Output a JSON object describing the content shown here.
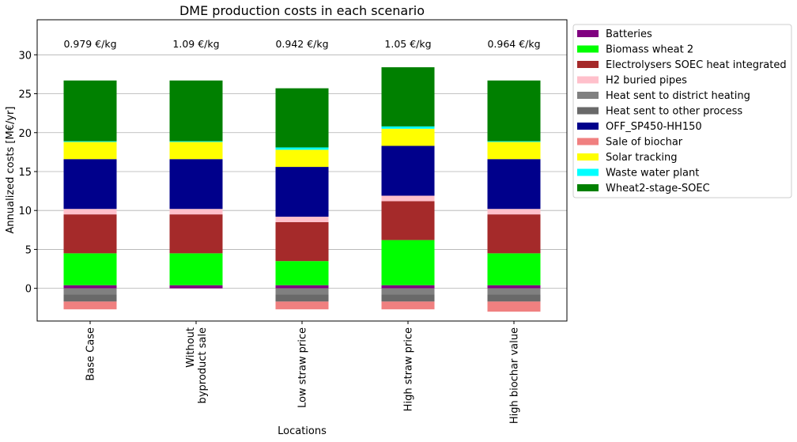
{
  "chart_data": {
    "type": "bar",
    "stacked": true,
    "title": "DME production costs in each scenario",
    "xlabel": "Locations",
    "ylabel": "Annualized costs [M€/yr]",
    "ylim": [
      -4.2,
      34.5
    ],
    "yticks": [
      0,
      5,
      10,
      15,
      20,
      25,
      30
    ],
    "grid": "horizontal",
    "legend_position": "outside-right",
    "categories": [
      "Base Case",
      "Without\nbyproduct sale",
      "Low straw price",
      "High straw price",
      "High biochar value"
    ],
    "annotations": [
      "0.979 €/kg",
      "1.09 €/kg",
      "0.942 €/kg",
      "1.05 €/kg",
      "0.964 €/kg"
    ],
    "series": [
      {
        "name": "Batteries",
        "color": "#800080",
        "values": [
          0.4,
          0.4,
          0.4,
          0.4,
          0.4
        ]
      },
      {
        "name": "Biomass wheat 2",
        "color": "#00ff00",
        "values": [
          4.1,
          4.1,
          3.1,
          5.8,
          4.1
        ]
      },
      {
        "name": "Electrolysers SOEC heat integrated",
        "color": "#a52a2a",
        "values": [
          5.0,
          5.0,
          5.0,
          5.0,
          5.0
        ]
      },
      {
        "name": "H2 buried pipes",
        "color": "#ffc0cb",
        "values": [
          0.7,
          0.7,
          0.7,
          0.7,
          0.7
        ]
      },
      {
        "name": "Heat sent to district heating",
        "color": "#808080",
        "values": [
          -0.8,
          0,
          -0.8,
          -0.8,
          -0.8
        ]
      },
      {
        "name": "Heat sent to other process",
        "color": "#696969",
        "values": [
          -0.9,
          0,
          -0.9,
          -0.9,
          -0.9
        ]
      },
      {
        "name": "OFF_SP450-HH150",
        "color": "#00008b",
        "values": [
          6.4,
          6.4,
          6.4,
          6.4,
          6.4
        ]
      },
      {
        "name": "Sale of biochar",
        "color": "#f08080",
        "values": [
          -1.0,
          0,
          -1.0,
          -1.0,
          -1.3
        ]
      },
      {
        "name": "Solar tracking",
        "color": "#ffff00",
        "values": [
          2.2,
          2.2,
          2.2,
          2.2,
          2.2
        ]
      },
      {
        "name": "Waste water plant",
        "color": "#00ffff",
        "values": [
          0.1,
          0.1,
          0.3,
          0.3,
          0.1
        ]
      },
      {
        "name": "Wheat2-stage-SOEC",
        "color": "#008000",
        "values": [
          7.8,
          7.8,
          7.6,
          7.6,
          7.8
        ]
      }
    ]
  }
}
